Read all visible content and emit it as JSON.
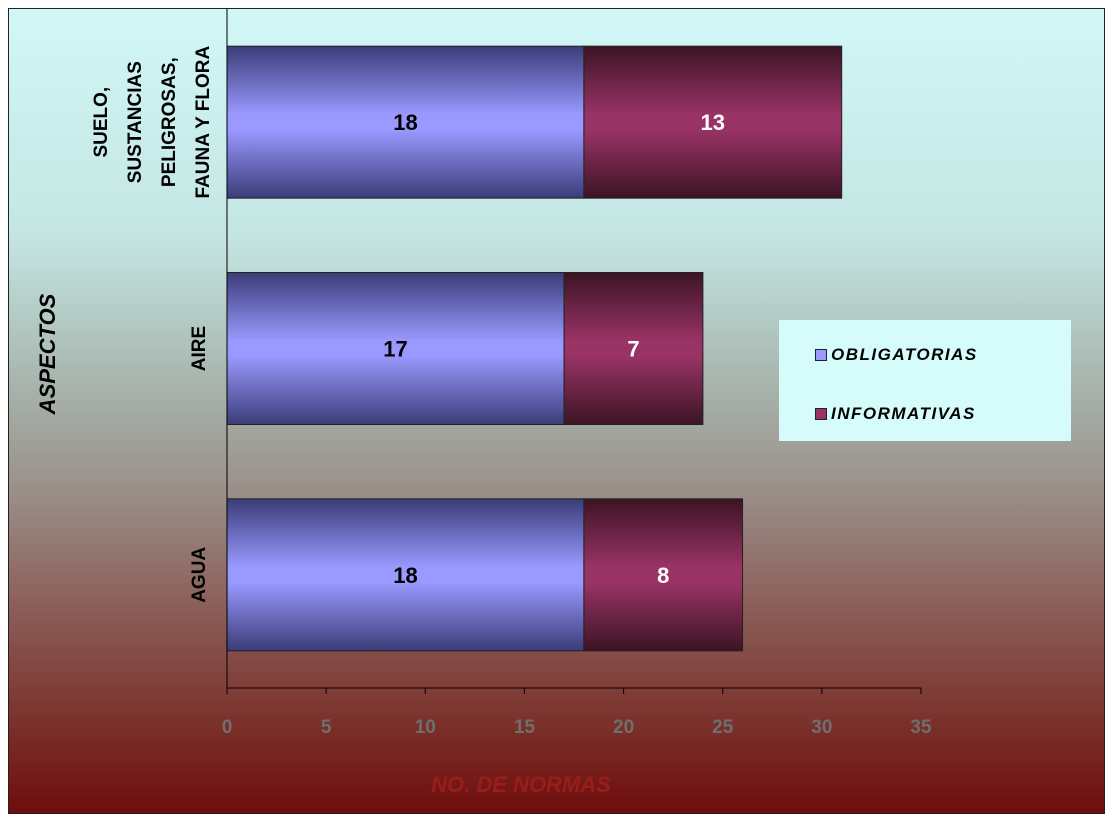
{
  "chart_data": {
    "type": "bar",
    "orientation": "horizontal",
    "stacked": true,
    "categories": [
      "AGUA",
      "AIRE",
      "SUELO, SUSTANCIAS PELIGROSAS, FAUNA Y FLORA"
    ],
    "category_label_lines": [
      [
        "AGUA"
      ],
      [
        "AIRE"
      ],
      [
        "SUELO,",
        "SUSTANCIAS",
        "PELIGROSAS,",
        "FAUNA Y FLORA"
      ]
    ],
    "series": [
      {
        "name": "OBLIGATORIAS",
        "values": [
          18,
          17,
          18
        ],
        "color": "#9999ff",
        "shade": "#3b3c78"
      },
      {
        "name": "INFORMATIVAS",
        "values": [
          8,
          7,
          13
        ],
        "color": "#993366",
        "shade": "#3c1424"
      }
    ],
    "xlabel": "NO. DE NORMAS",
    "ylabel": "ASPECTOS",
    "xlim": [
      0,
      35
    ],
    "xticks": [
      0,
      5,
      10,
      15,
      20,
      25,
      30,
      35
    ],
    "grid": false,
    "legend_position": "right"
  }
}
